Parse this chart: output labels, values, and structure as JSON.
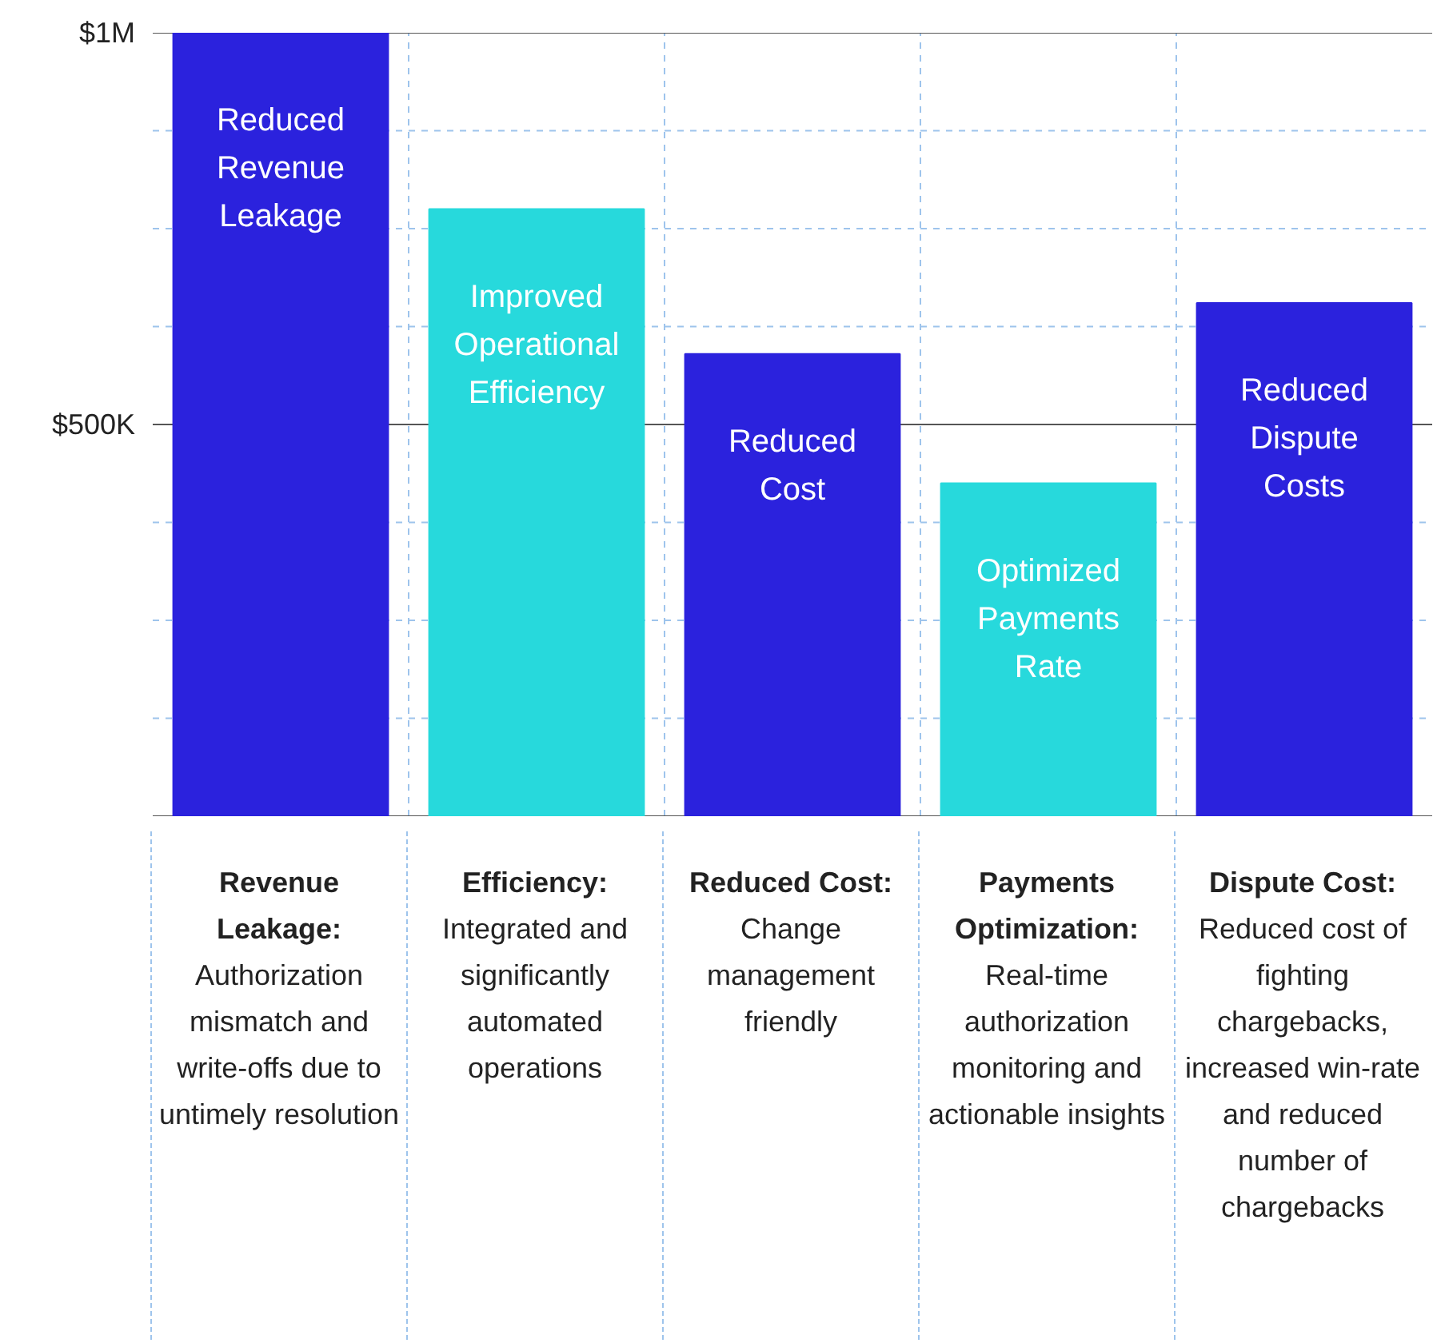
{
  "chart_data": {
    "type": "bar",
    "categories": [
      "Reduced Revenue Leakage",
      "Improved Operational Efficiency",
      "Reduced Cost",
      "Optimized Payments Rate",
      "Reduced Dispute Costs"
    ],
    "values": [
      1000000,
      775000,
      590000,
      425000,
      655000
    ],
    "colors": [
      "#2b22dd",
      "#27d9dc",
      "#2b22dd",
      "#27d9dc",
      "#2b22dd"
    ],
    "ylim": [
      0,
      1000000
    ],
    "yticks": [
      {
        "value": 0,
        "label": null
      },
      {
        "value": 125000,
        "label": null
      },
      {
        "value": 250000,
        "label": null
      },
      {
        "value": 375000,
        "label": null
      },
      {
        "value": 500000,
        "label": "$500K"
      },
      {
        "value": 625000,
        "label": null
      },
      {
        "value": 750000,
        "label": null
      },
      {
        "value": 875000,
        "label": null
      },
      {
        "value": 1000000,
        "label": "$1M"
      }
    ],
    "grid": true,
    "tick_labels": "y",
    "annotations": [
      "Revenue Leakage:",
      "Authorization mismatch and write-offs due to untimely resolution",
      "Efficiency:",
      "Integrated and significantly automated operations",
      "Reduced Cost:",
      "Change management friendly",
      "Payments Optimization:",
      "Real-time authorization monitoring and actionable insights",
      "Dispute Cost:",
      "Reduced cost of fighting chargebacks, increased win-rate and reduced number of chargebacks"
    ]
  }
}
